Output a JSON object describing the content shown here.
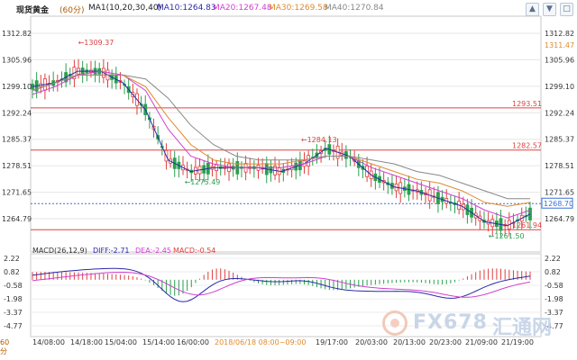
{
  "header": {
    "instrument": "现货黄金",
    "period": "(60分)",
    "ma_label": "MA1(10,20,30,40)",
    "ma10": "MA10:1264.83",
    "ma20": "MA20:1267.48",
    "ma30": "MA30:1269.58",
    "ma40": "MA40:1270.84",
    "colors": {
      "ma10": "#2a2aaa",
      "ma20": "#d040d0",
      "ma30": "#e08a30",
      "ma40": "#888888"
    }
  },
  "toolbar_icons": [
    "up-arrow-icon",
    "down-arrow-icon",
    "box-icon"
  ],
  "price_axis": {
    "left_ticks": [
      "1312.82",
      "1305.96",
      "1299.10",
      "1292.24",
      "1285.37",
      "1278.51",
      "1271.65",
      "1264.79"
    ],
    "right_ticks": [
      "1312.82",
      "1305.96",
      "1299.10",
      "1292.24",
      "1285.37",
      "1278.51",
      "1271.65",
      "1264.79"
    ],
    "right_top_value": "1311.47"
  },
  "price_lines": [
    {
      "label": "1293.51",
      "color": "#e04040"
    },
    {
      "label": "1282.57",
      "color": "#e04040"
    },
    {
      "label": "1261.94",
      "color": "#e04040"
    }
  ],
  "current_price": {
    "label": "1268.70",
    "color": "#3a6fd8"
  },
  "annotations": [
    {
      "label": "1309.37"
    },
    {
      "label": "1275.49"
    },
    {
      "label": "1284.13"
    },
    {
      "label": "1261.50"
    }
  ],
  "macd": {
    "title": "MACD(26,12,9)",
    "diff": "DIFF:-2.71",
    "dea": "DEA:-2.45",
    "macd": "MACD:-0.54",
    "ticks": [
      "2.22",
      "0.82",
      "-0.58",
      "-1.98",
      "-3.37",
      "-4.77"
    ],
    "colors": {
      "diff": "#2a2aaa",
      "dea": "#d040d0",
      "up": "#e04040",
      "down": "#2aa050"
    }
  },
  "time_axis": {
    "labels": [
      "14/08:00",
      "14/18:00",
      "15/04:00",
      "15/14:00",
      "16/00:00",
      "19/17:00",
      "20/03:00",
      "20/13:00",
      "20/23:00",
      "21/09:00",
      "21/19:00"
    ],
    "cursor_label": "2018/06/18 08:00~09:00"
  },
  "period_button": "60分",
  "watermark": {
    "text1": "FX678",
    "text2": "汇通网"
  },
  "chart_data": {
    "type": "line",
    "title": "现货黄金",
    "ylim": [
      1261.5,
      1312.82
    ],
    "series": [
      {
        "name": "MA10",
        "values": [
          1299,
          1300,
          1303,
          1303,
          1300,
          1293,
          1280,
          1277,
          1278,
          1278,
          1278,
          1277,
          1279,
          1283,
          1281,
          1276,
          1273,
          1272,
          1270,
          1268,
          1264,
          1263,
          1266
        ]
      },
      {
        "name": "MA20",
        "values": [
          1297,
          1299,
          1302,
          1303,
          1302,
          1298,
          1288,
          1281,
          1279,
          1278,
          1278,
          1278,
          1279,
          1281,
          1281,
          1278,
          1276,
          1274,
          1272,
          1270,
          1267,
          1265,
          1267
        ]
      },
      {
        "name": "MA30",
        "values": [
          1298,
          1300,
          1302,
          1302,
          1302,
          1299,
          1291,
          1284,
          1280,
          1279,
          1279,
          1279,
          1280,
          1281,
          1281,
          1279,
          1277,
          1275,
          1274,
          1272,
          1269,
          1268,
          1269
        ]
      },
      {
        "name": "MA40",
        "values": [
          1298,
          1300,
          1302,
          1302,
          1302,
          1301,
          1296,
          1289,
          1284,
          1281,
          1280,
          1280,
          1280,
          1281,
          1281,
          1280,
          1279,
          1277,
          1276,
          1274,
          1272,
          1270,
          1270
        ]
      }
    ]
  }
}
